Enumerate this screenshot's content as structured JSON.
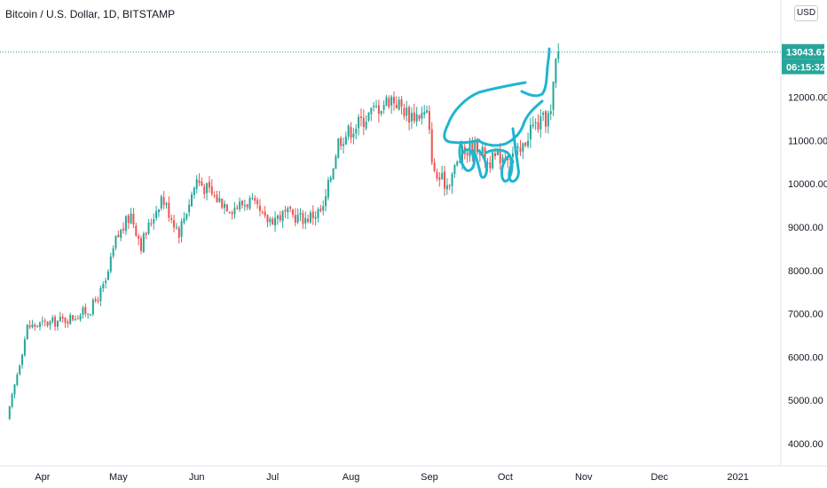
{
  "chart_data": {
    "type": "candlestick",
    "title": "Bitcoin / U.S. Dollar, 1D, BITSTAMP",
    "currency_label": "USD",
    "ylim": [
      3700,
      14500
    ],
    "y_ticks": [
      "4000.00",
      "5000.00",
      "6000.00",
      "7000.00",
      "8000.00",
      "9000.00",
      "10000.00",
      "11000.00",
      "12000.00"
    ],
    "top_tick_partial": "0",
    "x_ticks": [
      "Apr",
      "May",
      "Jun",
      "Jul",
      "Aug",
      "Sep",
      "Oct",
      "Nov",
      "Dec",
      "2021"
    ],
    "last_price": "13043.67",
    "countdown": "06:15:32",
    "colors": {
      "up": "#26a69a",
      "down": "#ef5350",
      "drawing": "#1fb5d1",
      "badge": "#26a69a"
    },
    "close_series": [
      {
        "date": "2020-03-19",
        "close": 4800
      },
      {
        "date": "2020-03-26",
        "close": 6700
      },
      {
        "date": "2020-04-05",
        "close": 6800
      },
      {
        "date": "2020-04-12",
        "close": 6900
      },
      {
        "date": "2020-04-20",
        "close": 7100
      },
      {
        "date": "2020-04-26",
        "close": 7700
      },
      {
        "date": "2020-04-30",
        "close": 8700
      },
      {
        "date": "2020-05-06",
        "close": 9300
      },
      {
        "date": "2020-05-10",
        "close": 8600
      },
      {
        "date": "2020-05-18",
        "close": 9700
      },
      {
        "date": "2020-05-25",
        "close": 8900
      },
      {
        "date": "2020-06-01",
        "close": 10100
      },
      {
        "date": "2020-06-08",
        "close": 9700
      },
      {
        "date": "2020-06-15",
        "close": 9450
      },
      {
        "date": "2020-06-22",
        "close": 9600
      },
      {
        "date": "2020-06-28",
        "close": 9150
      },
      {
        "date": "2020-07-06",
        "close": 9300
      },
      {
        "date": "2020-07-14",
        "close": 9200
      },
      {
        "date": "2020-07-21",
        "close": 9400
      },
      {
        "date": "2020-07-27",
        "close": 11000
      },
      {
        "date": "2020-08-02",
        "close": 11300
      },
      {
        "date": "2020-08-10",
        "close": 11700
      },
      {
        "date": "2020-08-17",
        "close": 12000
      },
      {
        "date": "2020-08-24",
        "close": 11600
      },
      {
        "date": "2020-08-31",
        "close": 11600
      },
      {
        "date": "2020-09-03",
        "close": 10200
      },
      {
        "date": "2020-09-08",
        "close": 10000
      },
      {
        "date": "2020-09-14",
        "close": 10700
      },
      {
        "date": "2020-09-20",
        "close": 10900
      },
      {
        "date": "2020-09-24",
        "close": 10500
      },
      {
        "date": "2020-10-01",
        "close": 10700
      },
      {
        "date": "2020-10-07",
        "close": 10700
      },
      {
        "date": "2020-10-11",
        "close": 11300
      },
      {
        "date": "2020-10-15",
        "close": 11400
      },
      {
        "date": "2020-10-19",
        "close": 11600
      },
      {
        "date": "2020-10-21",
        "close": 12800
      },
      {
        "date": "2020-10-22",
        "close": 13043.67
      }
    ]
  }
}
